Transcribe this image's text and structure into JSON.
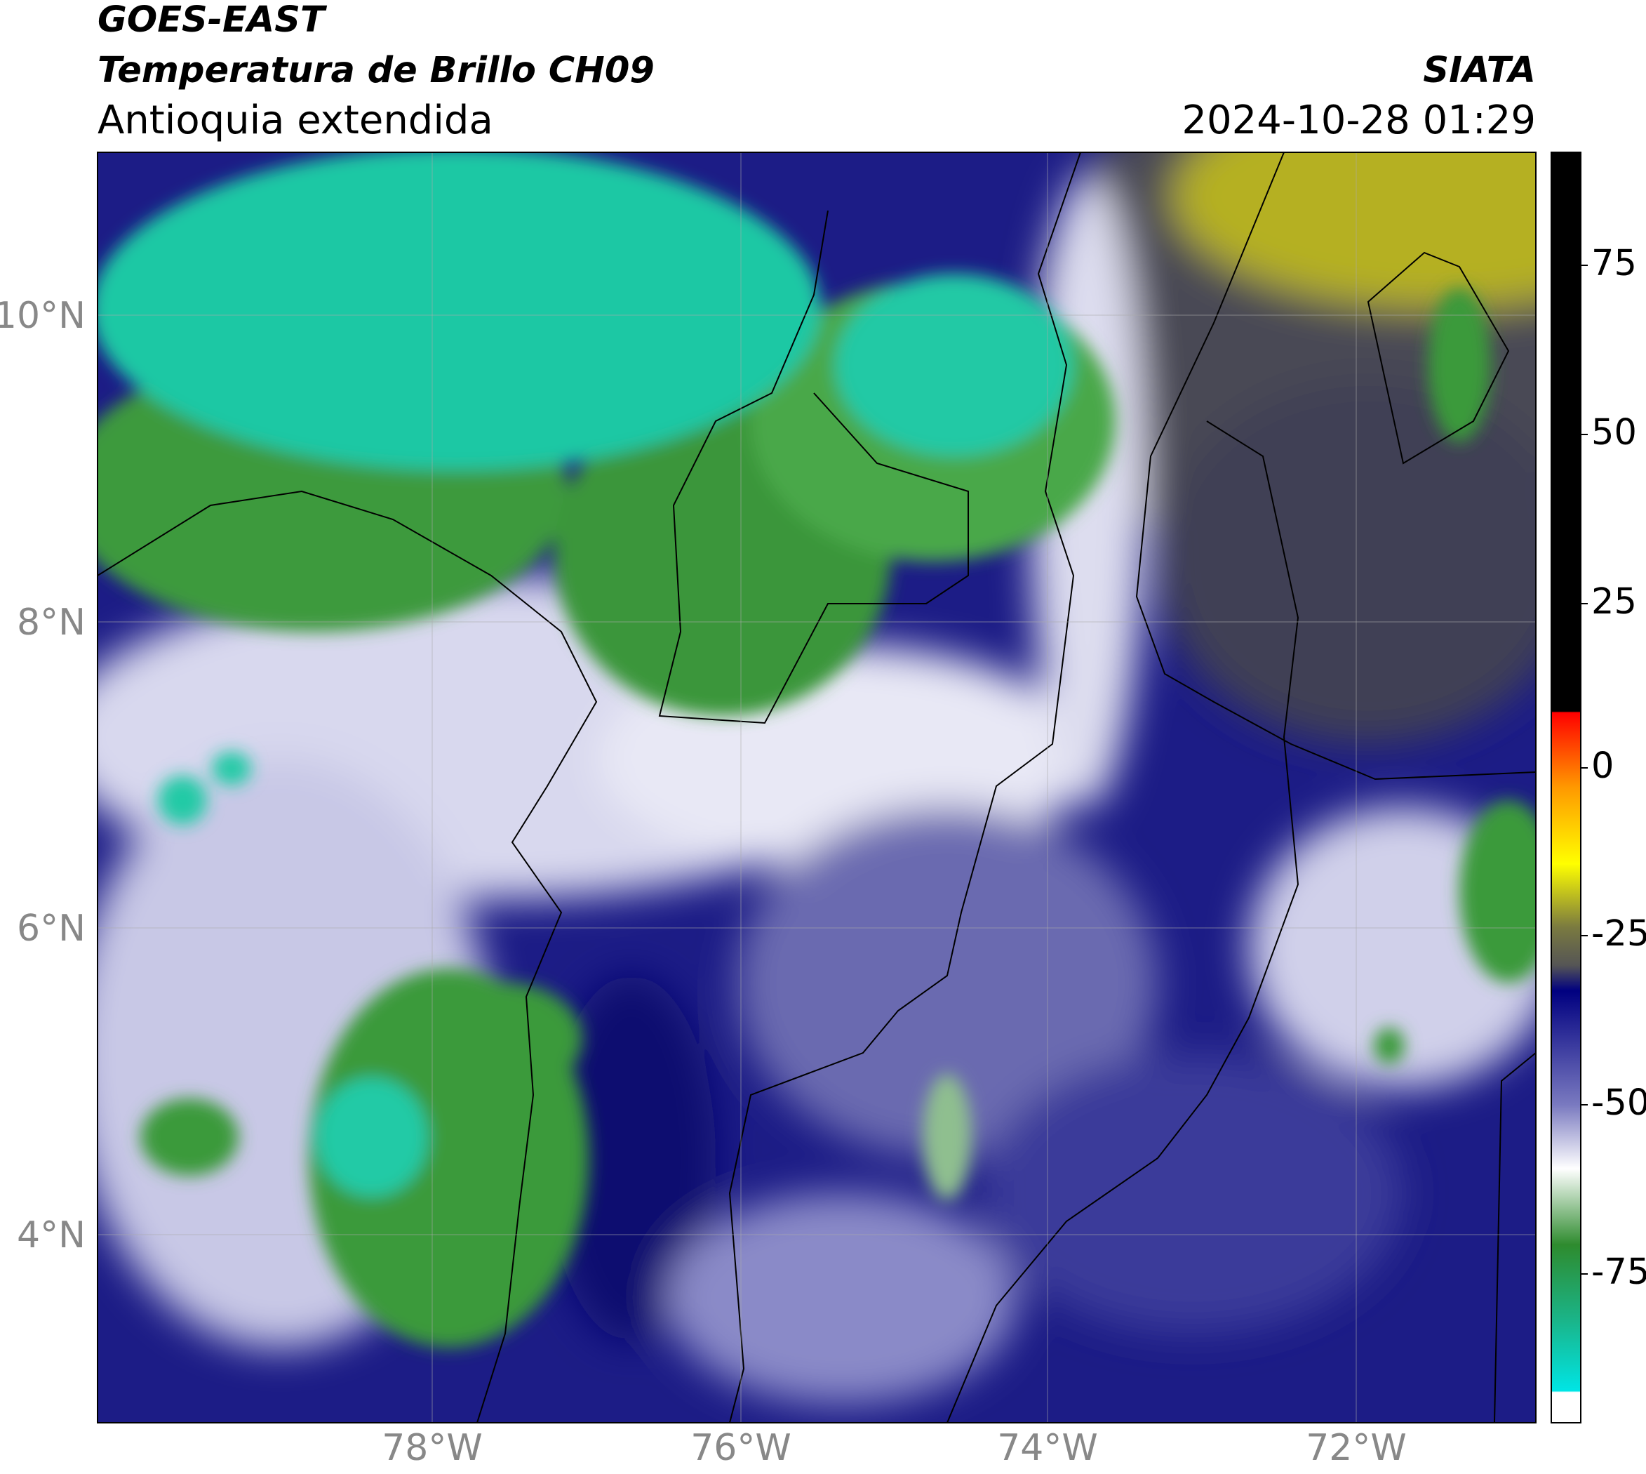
{
  "header": {
    "title_line1": "GOES-EAST",
    "title_line2": "Temperatura de Brillo CH09",
    "subtitle": "Antioquia extendida",
    "agency": "SIATA",
    "timestamp": "2024-10-28 01:29"
  },
  "map": {
    "lat_ticks": [
      "10°N",
      "8°N",
      "6°N",
      "4°N"
    ],
    "lon_ticks": [
      "78°W",
      "76°W",
      "74°W",
      "72°W"
    ]
  },
  "colorbar": {
    "ticks": [
      "75",
      "50",
      "25",
      "0",
      "-25",
      "-50",
      "-75"
    ]
  }
}
